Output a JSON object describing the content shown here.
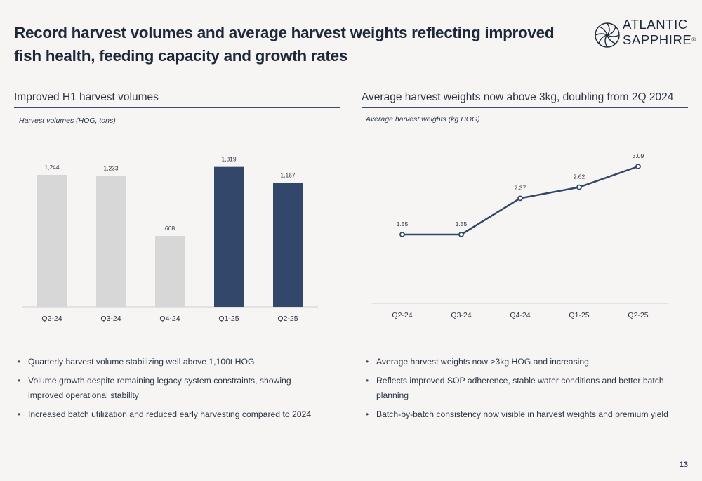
{
  "header": {
    "title": "Record harvest volumes and average harvest weights reflecting improved fish health, feeding capacity and growth rates"
  },
  "logo": {
    "line1": "ATLANTIC",
    "line2": "SAPPHIRE",
    "mark": "®"
  },
  "left": {
    "section_title": "Improved H1 harvest volumes",
    "bullets": [
      "Quarterly harvest volume stabilizing well above 1,100t HOG",
      "Volume growth despite remaining legacy system constraints, showing improved operational stability",
      "Increased batch utilization and reduced early harvesting compared to 2024"
    ]
  },
  "right": {
    "section_title": "Average harvest weights now above 3kg, doubling from 2Q 2024",
    "bullets": [
      "Average harvest weights now >3kg HOG and increasing",
      "Reflects improved SOP adherence, stable water conditions and better batch planning",
      "Batch-by-batch consistency now visible in harvest weights and premium yield"
    ]
  },
  "page_number": "13",
  "colors": {
    "bar_light": "#d7d7d7",
    "bar_dark": "#33476a",
    "line": "#33476a",
    "text": "#1e2838"
  },
  "chart_data": [
    {
      "type": "bar",
      "title": "Harvest volumes (HOG, tons)",
      "categories": [
        "Q2-24",
        "Q3-24",
        "Q4-24",
        "Q1-25",
        "Q2-25"
      ],
      "values": [
        1244,
        1233,
        668,
        1319,
        1167
      ],
      "value_labels": [
        "1,244",
        "1,233",
        "668",
        "1,319",
        "1,167"
      ],
      "highlighted": [
        false,
        false,
        false,
        true,
        true
      ],
      "ylim": [
        0,
        1400
      ],
      "grid": false,
      "legend": "none"
    },
    {
      "type": "line",
      "title": "Average harvest weights (kg HOG)",
      "categories": [
        "Q2-24",
        "Q3-24",
        "Q4-24",
        "Q1-25",
        "Q2-25"
      ],
      "values": [
        1.55,
        1.55,
        2.37,
        2.62,
        3.09
      ],
      "value_labels": [
        "1.55",
        "1.55",
        "2.37",
        "2.62",
        "3.09"
      ],
      "ylim": [
        0,
        3.6
      ],
      "grid": false,
      "legend": "none"
    }
  ]
}
